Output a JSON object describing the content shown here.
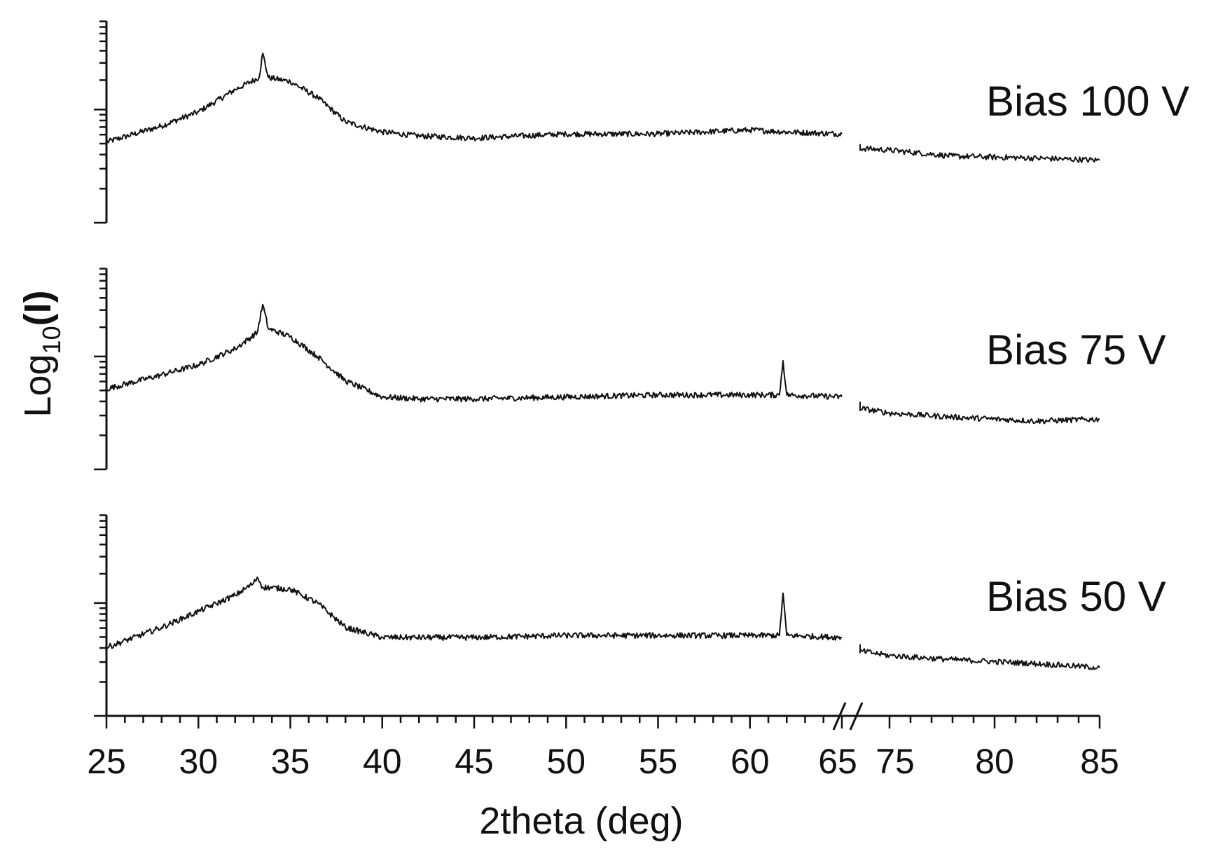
{
  "chart_data": {
    "type": "line",
    "xlabel": "2theta (deg)",
    "ylabel": "Log10(I)",
    "ylabel_base": "Log",
    "ylabel_sub": "10",
    "ylabel_arg": "(I)",
    "x_tick_labels": [
      "25",
      "30",
      "35",
      "40",
      "45",
      "50",
      "55",
      "60",
      "65",
      "75",
      "80",
      "85"
    ],
    "x_segments": [
      {
        "range": [
          25,
          65
        ],
        "ticks": [
          25,
          30,
          35,
          40,
          45,
          50,
          55,
          60,
          65
        ]
      },
      {
        "range": [
          72,
          85
        ],
        "ticks": [
          75,
          80,
          85
        ]
      }
    ],
    "axis_break_symbol": "//",
    "y_tick_labels_shown": false,
    "series": [
      {
        "name": "Bias 100 V",
        "points": [
          [
            25,
            0.4
          ],
          [
            28,
            0.48
          ],
          [
            30,
            0.55
          ],
          [
            32,
            0.66
          ],
          [
            33.3,
            0.72
          ],
          [
            33.5,
            0.84
          ],
          [
            33.8,
            0.72
          ],
          [
            35,
            0.7
          ],
          [
            36.5,
            0.62
          ],
          [
            38,
            0.5
          ],
          [
            40,
            0.45
          ],
          [
            42,
            0.43
          ],
          [
            45,
            0.42
          ],
          [
            50,
            0.44
          ],
          [
            55,
            0.44
          ],
          [
            60,
            0.46
          ],
          [
            62,
            0.45
          ],
          [
            65,
            0.44
          ],
          [
            72,
            0.38
          ],
          [
            75,
            0.36
          ],
          [
            78,
            0.33
          ],
          [
            82,
            0.32
          ],
          [
            85,
            0.31
          ]
        ]
      },
      {
        "name": "Bias 75 V",
        "points": [
          [
            25,
            0.4
          ],
          [
            28,
            0.47
          ],
          [
            30,
            0.52
          ],
          [
            32,
            0.6
          ],
          [
            33.2,
            0.68
          ],
          [
            33.5,
            0.82
          ],
          [
            33.8,
            0.7
          ],
          [
            35,
            0.66
          ],
          [
            36.5,
            0.56
          ],
          [
            38,
            0.44
          ],
          [
            40,
            0.36
          ],
          [
            42,
            0.35
          ],
          [
            45,
            0.35
          ],
          [
            50,
            0.36
          ],
          [
            55,
            0.37
          ],
          [
            60,
            0.37
          ],
          [
            61.6,
            0.37
          ],
          [
            61.8,
            0.54
          ],
          [
            62,
            0.37
          ],
          [
            65,
            0.36
          ],
          [
            72,
            0.33
          ],
          [
            75,
            0.28
          ],
          [
            78,
            0.26
          ],
          [
            82,
            0.24
          ],
          [
            85,
            0.25
          ]
        ]
      },
      {
        "name": "Bias 50 V",
        "points": [
          [
            25,
            0.34
          ],
          [
            28,
            0.44
          ],
          [
            30,
            0.52
          ],
          [
            32,
            0.6
          ],
          [
            33,
            0.66
          ],
          [
            33.2,
            0.69
          ],
          [
            33.5,
            0.64
          ],
          [
            35,
            0.63
          ],
          [
            36.5,
            0.56
          ],
          [
            38,
            0.44
          ],
          [
            40,
            0.39
          ],
          [
            45,
            0.39
          ],
          [
            50,
            0.4
          ],
          [
            55,
            0.4
          ],
          [
            60,
            0.4
          ],
          [
            61.6,
            0.4
          ],
          [
            61.8,
            0.61
          ],
          [
            62,
            0.4
          ],
          [
            65,
            0.39
          ],
          [
            72,
            0.35
          ],
          [
            75,
            0.3
          ],
          [
            78,
            0.28
          ],
          [
            82,
            0.26
          ],
          [
            85,
            0.24
          ]
        ]
      }
    ],
    "panel_labels": [
      "Bias 100 V",
      "Bias 75 V",
      "Bias 50 V"
    ],
    "grid": false,
    "legend": "none"
  }
}
